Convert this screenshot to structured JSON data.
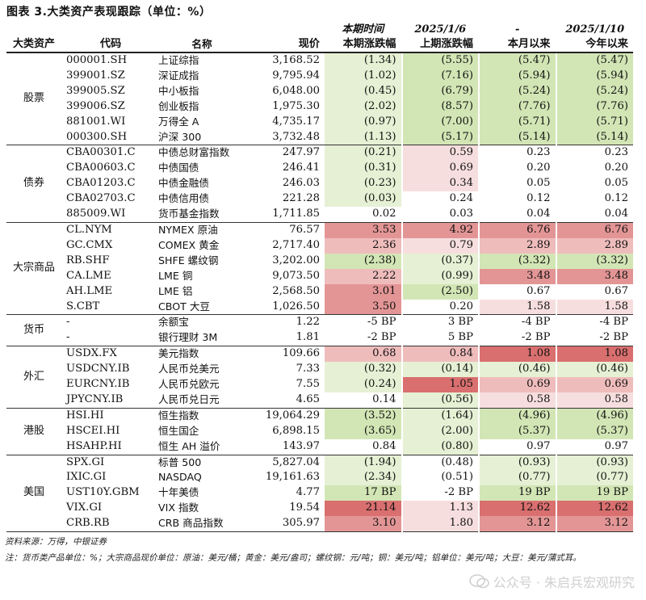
{
  "title": "图表 3.大类资产表现跟踪（单位：%）",
  "header": {
    "row1": [
      "本期时间",
      "2025/1/6",
      "-",
      "2025/1/10"
    ],
    "row2": {
      "category": "大类资产",
      "code": "代码",
      "name": "名称",
      "price": "现价",
      "cols": [
        "本期涨跌幅",
        "上期涨跌幅",
        "本月以来",
        "今年以来"
      ]
    }
  },
  "groups": [
    {
      "category": "股票",
      "rows": [
        {
          "code": "000001.SH",
          "name": "上证综指",
          "price": "3,168.52",
          "v": [
            "(1.34)",
            "(5.55)",
            "(5.47)",
            "(5.47)"
          ],
          "c": [
            "g1",
            "g2",
            "g2",
            "g2"
          ]
        },
        {
          "code": "399001.SZ",
          "name": "深证成指",
          "price": "9,795.94",
          "v": [
            "(1.02)",
            "(7.16)",
            "(5.94)",
            "(5.94)"
          ],
          "c": [
            "g1",
            "g2",
            "g2",
            "g2"
          ]
        },
        {
          "code": "399005.SZ",
          "name": "中小板指",
          "price": "6,048.00",
          "v": [
            "(0.45)",
            "(6.79)",
            "(5.24)",
            "(5.24)"
          ],
          "c": [
            "g1",
            "g2",
            "g2",
            "g2"
          ]
        },
        {
          "code": "399006.SZ",
          "name": "创业板指",
          "price": "1,975.30",
          "v": [
            "(2.02)",
            "(8.57)",
            "(7.76)",
            "(7.76)"
          ],
          "c": [
            "g1",
            "g2",
            "g2",
            "g2"
          ]
        },
        {
          "code": "881001.WI",
          "name": "万得全 A",
          "price": "4,735.17",
          "v": [
            "(0.97)",
            "(7.00)",
            "(5.71)",
            "(5.71)"
          ],
          "c": [
            "g1",
            "g2",
            "g2",
            "g2"
          ]
        },
        {
          "code": "000300.SH",
          "name": "沪深 300",
          "price": "3,732.48",
          "v": [
            "(1.13)",
            "(5.17)",
            "(5.14)",
            "(5.14)"
          ],
          "c": [
            "g1",
            "g2",
            "g2",
            "g2"
          ]
        }
      ]
    },
    {
      "category": "债券",
      "rows": [
        {
          "code": "CBA00301.C",
          "name": "中债总财富指数",
          "price": "247.97",
          "v": [
            "(0.21)",
            "0.59",
            "0.23",
            "0.23"
          ],
          "c": [
            "g1",
            "p1",
            "",
            ""
          ]
        },
        {
          "code": "CBA00603.C",
          "name": "中债国债",
          "price": "246.41",
          "v": [
            "(0.31)",
            "0.69",
            "0.20",
            "0.20"
          ],
          "c": [
            "g1",
            "p1",
            "",
            ""
          ]
        },
        {
          "code": "CBA01203.C",
          "name": "中债金融债",
          "price": "246.03",
          "v": [
            "(0.23)",
            "0.34",
            "0.05",
            "0.05"
          ],
          "c": [
            "g1",
            "p1",
            "",
            ""
          ]
        },
        {
          "code": "CBA02703.C",
          "name": "中债信用债",
          "price": "221.28",
          "v": [
            "(0.03)",
            "0.24",
            "0.12",
            "0.12"
          ],
          "c": [
            "g1",
            "",
            "",
            ""
          ]
        },
        {
          "code": "885009.WI",
          "name": "货币基金指数",
          "price": "1,711.85",
          "v": [
            "0.02",
            "0.03",
            "0.04",
            "0.04"
          ],
          "c": [
            "",
            "",
            "",
            ""
          ]
        }
      ]
    },
    {
      "category": "大宗商品",
      "rows": [
        {
          "code": "CL.NYM",
          "name": "NYMEX 原油",
          "price": "76.57",
          "v": [
            "3.53",
            "4.92",
            "6.76",
            "6.76"
          ],
          "c": [
            "p3",
            "p3",
            "p3",
            "p3"
          ]
        },
        {
          "code": "GC.CMX",
          "name": "COMEX 黄金",
          "price": "2,717.40",
          "v": [
            "2.36",
            "0.79",
            "2.89",
            "2.89"
          ],
          "c": [
            "p2",
            "p1",
            "p2",
            "p2"
          ]
        },
        {
          "code": "RB.SHF",
          "name": "SHFE 螺纹钢",
          "price": "3,202.00",
          "v": [
            "(2.38)",
            "(0.37)",
            "(3.32)",
            "(3.32)"
          ],
          "c": [
            "g2",
            "g1",
            "g2",
            "g2"
          ]
        },
        {
          "code": "CA.LME",
          "name": "LME 铜",
          "price": "9,073.50",
          "v": [
            "2.22",
            "(0.99)",
            "3.48",
            "3.48"
          ],
          "c": [
            "p2",
            "g1",
            "p3",
            "p3"
          ]
        },
        {
          "code": "AH.LME",
          "name": "LME 铝",
          "price": "2,568.50",
          "v": [
            "3.01",
            "(2.50)",
            "0.67",
            "0.67"
          ],
          "c": [
            "p3",
            "g2",
            "",
            ""
          ]
        },
        {
          "code": "S.CBT",
          "name": "CBOT 大豆",
          "price": "1,026.50",
          "v": [
            "3.50",
            "0.20",
            "1.58",
            "1.58"
          ],
          "c": [
            "p3",
            "",
            "p1",
            "p1"
          ]
        }
      ]
    },
    {
      "category": "货币",
      "rows": [
        {
          "code": "-",
          "name": "余额宝",
          "price": "1.22",
          "v": [
            "-5 BP",
            "3 BP",
            "-4 BP",
            "-4 BP"
          ],
          "c": [
            "",
            "",
            "",
            ""
          ]
        },
        {
          "code": "-",
          "name": "银行理财 3M",
          "price": "1.81",
          "v": [
            "-2 BP",
            "5 BP",
            "-2 BP",
            "-2 BP"
          ],
          "c": [
            "",
            "",
            "",
            ""
          ]
        }
      ]
    },
    {
      "category": "外汇",
      "rows": [
        {
          "code": "USDX.FX",
          "name": "美元指数",
          "price": "109.66",
          "v": [
            "0.68",
            "0.84",
            "1.08",
            "1.08"
          ],
          "c": [
            "p2",
            "p2",
            "p4",
            "p4"
          ]
        },
        {
          "code": "USDCNY.IB",
          "name": "人民币兑美元",
          "price": "7.33",
          "v": [
            "(0.32)",
            "(0.14)",
            "(0.46)",
            "(0.46)"
          ],
          "c": [
            "g1",
            "g1",
            "g1",
            "g1"
          ]
        },
        {
          "code": "EURCNY.IB",
          "name": "人民币兑欧元",
          "price": "7.55",
          "v": [
            "(0.24)",
            "1.05",
            "0.69",
            "0.69"
          ],
          "c": [
            "g1",
            "p4",
            "p2",
            "p2"
          ]
        },
        {
          "code": "JPYCNY.IB",
          "name": "人民币兑日元",
          "price": "4.65",
          "v": [
            "0.14",
            "(0.56)",
            "0.58",
            "0.58"
          ],
          "c": [
            "",
            "g1",
            "p1",
            "p1"
          ]
        }
      ]
    },
    {
      "category": "港股",
      "rows": [
        {
          "code": "HSI.HI",
          "name": "恒生指数",
          "price": "19,064.29",
          "v": [
            "(3.52)",
            "(1.64)",
            "(4.96)",
            "(4.96)"
          ],
          "c": [
            "g2",
            "g1",
            "g2",
            "g2"
          ]
        },
        {
          "code": "HSCEI.HI",
          "name": "恒生国企",
          "price": "6,898.15",
          "v": [
            "(3.65)",
            "(2.00)",
            "(5.37)",
            "(5.37)"
          ],
          "c": [
            "g2",
            "g1",
            "g2",
            "g2"
          ]
        },
        {
          "code": "HSAHP.HI",
          "name": "恒生 AH 溢价",
          "price": "143.97",
          "v": [
            "0.84",
            "(0.80)",
            "0.97",
            "0.97"
          ],
          "c": [
            "",
            "g1",
            "",
            ""
          ]
        }
      ]
    },
    {
      "category": "美国",
      "rows": [
        {
          "code": "SPX.GI",
          "name": "标普 500",
          "price": "5,827.04",
          "v": [
            "(1.94)",
            "(0.48)",
            "(0.93)",
            "(0.93)"
          ],
          "c": [
            "g1",
            "",
            "g1",
            "g1"
          ]
        },
        {
          "code": "IXIC.GI",
          "name": "NASDAQ",
          "price": "19,161.63",
          "v": [
            "(2.34)",
            "(0.51)",
            "(0.77)",
            "(0.77)"
          ],
          "c": [
            "g1",
            "",
            "g1",
            "g1"
          ]
        },
        {
          "code": "UST10Y.GBM",
          "name": "十年美债",
          "price": "4.77",
          "v": [
            "17 BP",
            "-2 BP",
            "19 BP",
            "19 BP"
          ],
          "c": [
            "g2",
            "",
            "g2",
            "g2"
          ]
        },
        {
          "code": "VIX.GI",
          "name": "VIX 指数",
          "price": "19.54",
          "v": [
            "21.14",
            "1.13",
            "12.62",
            "12.62"
          ],
          "c": [
            "p4",
            "p1",
            "p4",
            "p4"
          ]
        },
        {
          "code": "CRB.RB",
          "name": "CRB 商品指数",
          "price": "305.97",
          "v": [
            "3.10",
            "1.80",
            "3.12",
            "3.12"
          ],
          "c": [
            "p3",
            "p1",
            "p3",
            "p3"
          ]
        }
      ]
    }
  ],
  "footer": {
    "source": "资料来源：万得，中银证券",
    "note": "注：货币类产品单位：%；大宗商品现价单位：原油：美元/桶；黄金：美元/盎司；螺纹钢：元/吨；铜：美元/吨；铝单位：美元/吨；大豆：美元/蒲式耳。"
  },
  "watermark": "公众号 · 朱启兵宏观研究",
  "colors": {
    "green_light": "#e6f0d4",
    "green": "#d2e6b5",
    "pink_light": "#f7dede",
    "pink": "#efbcbc",
    "red": "#e39595",
    "red_dark": "#d96f6f"
  }
}
